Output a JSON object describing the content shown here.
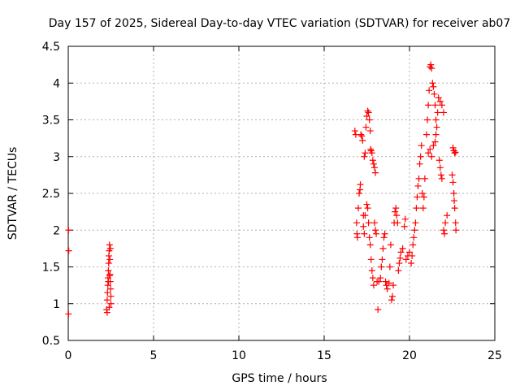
{
  "chart_data": {
    "type": "scatter",
    "title": "Day 157 of 2025, Sidereal Day-to-day VTEC variation (SDTVAR) for receiver ab07",
    "xlabel": "GPS time / hours",
    "ylabel": "SDTVAR / TECUs",
    "xlim": [
      0,
      25
    ],
    "ylim": [
      0.5,
      4.5
    ],
    "xticks": [
      "0",
      "5",
      "10",
      "15",
      "20",
      "25"
    ],
    "yticks": [
      "0.5",
      "1",
      "1.5",
      "2",
      "2.5",
      "3",
      "3.5",
      "4",
      "4.5"
    ],
    "grid": true,
    "marker": "plus",
    "color": "#ff0000",
    "series": [
      {
        "name": "SDTVAR",
        "points": [
          [
            0.02,
            2.0
          ],
          [
            0.03,
            1.72
          ],
          [
            0.02,
            0.86
          ],
          [
            2.25,
            0.92
          ],
          [
            2.28,
            1.05
          ],
          [
            2.3,
            1.15
          ],
          [
            2.32,
            1.25
          ],
          [
            2.33,
            1.35
          ],
          [
            2.35,
            1.45
          ],
          [
            2.37,
            1.55
          ],
          [
            2.38,
            1.65
          ],
          [
            2.4,
            1.72
          ],
          [
            2.42,
            1.8
          ],
          [
            2.44,
            1.6
          ],
          [
            2.45,
            1.4
          ],
          [
            2.46,
            1.3
          ],
          [
            2.48,
            1.2
          ],
          [
            2.5,
            1.1
          ],
          [
            2.5,
            1.0
          ],
          [
            2.4,
            0.95
          ],
          [
            2.35,
            1.3
          ],
          [
            2.42,
            1.38
          ],
          [
            2.28,
            0.88
          ],
          [
            2.47,
            1.75
          ],
          [
            16.8,
            3.35
          ],
          [
            16.85,
            3.3
          ],
          [
            16.9,
            2.1
          ],
          [
            16.92,
            1.95
          ],
          [
            16.95,
            1.9
          ],
          [
            17.0,
            2.3
          ],
          [
            17.05,
            2.5
          ],
          [
            17.1,
            2.55
          ],
          [
            17.12,
            2.62
          ],
          [
            17.15,
            3.3
          ],
          [
            17.2,
            3.28
          ],
          [
            17.25,
            3.22
          ],
          [
            17.3,
            2.2
          ],
          [
            17.35,
            3.0
          ],
          [
            17.4,
            3.05
          ],
          [
            17.45,
            3.4
          ],
          [
            17.5,
            3.55
          ],
          [
            17.55,
            3.62
          ],
          [
            17.6,
            3.6
          ],
          [
            17.65,
            3.5
          ],
          [
            17.7,
            3.35
          ],
          [
            17.72,
            3.1
          ],
          [
            17.75,
            3.08
          ],
          [
            17.8,
            3.05
          ],
          [
            17.85,
            2.95
          ],
          [
            17.9,
            2.9
          ],
          [
            17.95,
            2.85
          ],
          [
            18.0,
            2.78
          ],
          [
            17.3,
            2.05
          ],
          [
            17.35,
            1.95
          ],
          [
            17.4,
            2.2
          ],
          [
            17.5,
            2.35
          ],
          [
            17.55,
            2.3
          ],
          [
            17.6,
            2.1
          ],
          [
            17.65,
            1.9
          ],
          [
            17.7,
            1.8
          ],
          [
            17.75,
            1.6
          ],
          [
            17.8,
            1.45
          ],
          [
            17.85,
            1.35
          ],
          [
            17.9,
            1.25
          ],
          [
            17.95,
            2.1
          ],
          [
            18.0,
            2.0
          ],
          [
            18.05,
            1.95
          ],
          [
            18.1,
            1.3
          ],
          [
            18.15,
            0.92
          ],
          [
            18.2,
            1.3
          ],
          [
            18.3,
            1.35
          ],
          [
            18.35,
            1.5
          ],
          [
            18.4,
            1.6
          ],
          [
            18.45,
            1.75
          ],
          [
            18.5,
            1.9
          ],
          [
            18.55,
            1.95
          ],
          [
            18.6,
            1.3
          ],
          [
            18.65,
            1.25
          ],
          [
            18.7,
            1.2
          ],
          [
            18.8,
            1.28
          ],
          [
            18.85,
            1.5
          ],
          [
            18.9,
            1.8
          ],
          [
            18.95,
            1.05
          ],
          [
            19.0,
            1.1
          ],
          [
            19.05,
            1.25
          ],
          [
            19.1,
            2.1
          ],
          [
            19.15,
            2.25
          ],
          [
            19.2,
            2.3
          ],
          [
            19.25,
            2.2
          ],
          [
            19.3,
            2.1
          ],
          [
            19.35,
            1.45
          ],
          [
            19.4,
            1.55
          ],
          [
            19.45,
            1.62
          ],
          [
            19.5,
            1.7
          ],
          [
            19.6,
            1.75
          ],
          [
            19.7,
            2.05
          ],
          [
            19.75,
            2.15
          ],
          [
            19.8,
            1.6
          ],
          [
            19.9,
            1.65
          ],
          [
            20.0,
            1.7
          ],
          [
            20.1,
            1.55
          ],
          [
            20.15,
            1.65
          ],
          [
            20.2,
            1.8
          ],
          [
            20.25,
            1.9
          ],
          [
            20.3,
            2.0
          ],
          [
            20.35,
            2.1
          ],
          [
            20.4,
            2.3
          ],
          [
            20.45,
            2.45
          ],
          [
            20.5,
            2.6
          ],
          [
            20.55,
            2.7
          ],
          [
            20.6,
            2.9
          ],
          [
            20.65,
            3.0
          ],
          [
            20.7,
            3.15
          ],
          [
            20.75,
            2.5
          ],
          [
            20.8,
            2.3
          ],
          [
            20.85,
            2.45
          ],
          [
            20.9,
            2.7
          ],
          [
            21.0,
            3.3
          ],
          [
            21.05,
            3.5
          ],
          [
            21.1,
            3.7
          ],
          [
            21.15,
            3.9
          ],
          [
            21.2,
            4.22
          ],
          [
            21.25,
            4.25
          ],
          [
            21.3,
            4.2
          ],
          [
            21.35,
            4.0
          ],
          [
            21.4,
            3.95
          ],
          [
            21.45,
            3.85
          ],
          [
            21.5,
            3.7
          ],
          [
            21.55,
            3.5
          ],
          [
            21.1,
            3.05
          ],
          [
            21.2,
            3.1
          ],
          [
            21.3,
            3.0
          ],
          [
            21.4,
            3.15
          ],
          [
            21.5,
            3.2
          ],
          [
            21.55,
            3.3
          ],
          [
            21.6,
            3.4
          ],
          [
            21.65,
            3.6
          ],
          [
            21.7,
            3.8
          ],
          [
            21.8,
            3.75
          ],
          [
            21.9,
            3.7
          ],
          [
            22.0,
            3.6
          ],
          [
            21.75,
            2.95
          ],
          [
            21.8,
            2.85
          ],
          [
            21.85,
            2.75
          ],
          [
            21.9,
            2.7
          ],
          [
            22.0,
            2.0
          ],
          [
            22.05,
            1.95
          ],
          [
            22.1,
            2.1
          ],
          [
            22.2,
            2.2
          ],
          [
            22.5,
            2.75
          ],
          [
            22.55,
            2.65
          ],
          [
            22.6,
            2.5
          ],
          [
            22.62,
            2.4
          ],
          [
            22.65,
            2.3
          ],
          [
            22.7,
            2.1
          ],
          [
            22.72,
            2.0
          ],
          [
            22.55,
            3.12
          ],
          [
            22.6,
            3.08
          ],
          [
            22.65,
            3.05
          ],
          [
            22.7,
            3.06
          ]
        ]
      }
    ]
  }
}
